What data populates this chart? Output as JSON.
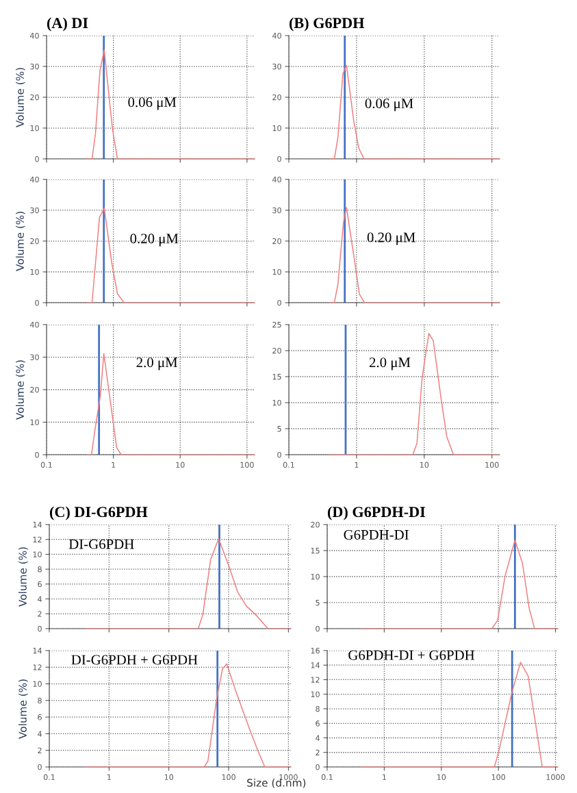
{
  "chart_data": [
    {
      "type": "line",
      "title": "(A) DI",
      "ylabel": "Volume (%)",
      "annotations": [
        "0.06 μM"
      ],
      "log": "x",
      "grid": true,
      "tick_labels": "y",
      "xlim": [
        0.1,
        130
      ],
      "ylim": [
        0,
        40
      ],
      "xticks": [
        0.1,
        1,
        10,
        100
      ],
      "yticks": [
        0,
        10,
        20,
        30,
        40
      ],
      "series": [
        {
          "color": "#f08080",
          "x": [
            0.4,
            0.48,
            0.54,
            0.63,
            0.73,
            0.97,
            1.15,
            130
          ],
          "values": [
            0,
            0,
            8.3,
            28.7,
            35.3,
            9.7,
            0,
            0
          ]
        }
      ],
      "ref_lines": [
        {
          "axis": "x",
          "value": 0.72,
          "color": "#4472c4"
        }
      ]
    },
    {
      "type": "line",
      "title": "(B) G6PDH",
      "annotations": [
        "0.06 μM"
      ],
      "log": "x",
      "grid": true,
      "tick_labels": "y",
      "xlim": [
        0.1,
        130
      ],
      "ylim": [
        0,
        40
      ],
      "xticks": [
        0.1,
        1,
        10,
        100
      ],
      "yticks": [
        0,
        10,
        20,
        30,
        40
      ],
      "series": [
        {
          "color": "#f08080",
          "x": [
            0.4,
            0.47,
            0.53,
            0.63,
            0.71,
            0.91,
            1.08,
            1.29,
            130
          ],
          "values": [
            0,
            0,
            6.8,
            27.7,
            30.4,
            12.2,
            3.4,
            0,
            0
          ]
        }
      ],
      "ref_lines": [
        {
          "axis": "x",
          "value": 0.67,
          "color": "#4472c4"
        }
      ]
    },
    {
      "type": "line",
      "ylabel": "Volume (%)",
      "annotations": [
        "0.20 μM"
      ],
      "log": "x",
      "grid": true,
      "tick_labels": "y",
      "xlim": [
        0.1,
        130
      ],
      "ylim": [
        0,
        40
      ],
      "xticks": [
        0.1,
        1,
        10,
        100
      ],
      "yticks": [
        0,
        10,
        20,
        30,
        40
      ],
      "series": [
        {
          "color": "#f08080",
          "x": [
            0.4,
            0.48,
            0.62,
            0.73,
            0.95,
            1.15,
            1.45,
            130
          ],
          "values": [
            0,
            0,
            27.7,
            30.7,
            12.7,
            2.9,
            0,
            0
          ]
        }
      ],
      "ref_lines": [
        {
          "axis": "x",
          "value": 0.72,
          "color": "#4472c4"
        }
      ]
    },
    {
      "type": "line",
      "annotations": [
        "0.20 μM"
      ],
      "log": "x",
      "grid": true,
      "tick_labels": "y",
      "xlim": [
        0.1,
        130
      ],
      "ylim": [
        0,
        40
      ],
      "xticks": [
        0.1,
        1,
        10,
        100
      ],
      "yticks": [
        0,
        10,
        20,
        30,
        40
      ],
      "series": [
        {
          "color": "#f08080",
          "x": [
            0.4,
            0.47,
            0.53,
            0.64,
            0.71,
            0.91,
            1.1,
            1.31,
            130
          ],
          "values": [
            0,
            0,
            5.9,
            26,
            30.9,
            15.3,
            2.8,
            0,
            0
          ]
        }
      ],
      "ref_lines": [
        {
          "axis": "x",
          "value": 0.67,
          "color": "#4472c4"
        }
      ]
    },
    {
      "type": "line",
      "ylabel": "Volume (%)",
      "annotations": [
        "2.0 μM"
      ],
      "log": "x",
      "grid": true,
      "xlim": [
        0.1,
        130
      ],
      "ylim": [
        0,
        40
      ],
      "xticks": [
        0.1,
        1,
        10,
        100
      ],
      "yticks": [
        0,
        10,
        20,
        30,
        40
      ],
      "series": [
        {
          "color": "#f08080",
          "x": [
            0.4,
            0.47,
            0.53,
            0.64,
            0.72,
            0.84,
            0.99,
            1.12,
            1.31,
            130
          ],
          "values": [
            0,
            0,
            7.6,
            18.3,
            31.1,
            21,
            10.3,
            2.2,
            0,
            0
          ]
        }
      ],
      "ref_lines": [
        {
          "axis": "x",
          "value": 0.61,
          "color": "#4472c4"
        }
      ]
    },
    {
      "type": "line",
      "annotations": [
        "2.0 μM"
      ],
      "log": "x",
      "grid": true,
      "xlim": [
        0.1,
        130
      ],
      "ylim": [
        0,
        25
      ],
      "xticks": [
        0.1,
        1,
        10,
        100
      ],
      "yticks": [
        0,
        5,
        10,
        15,
        20,
        25
      ],
      "series": [
        {
          "color": "#f08080",
          "x": [
            0.4,
            6.8,
            7.8,
            9.3,
            11.7,
            13.6,
            17.8,
            21.5,
            27,
            130
          ],
          "values": [
            0,
            0,
            2.2,
            14.8,
            23.3,
            21.9,
            10.6,
            3.5,
            0,
            0
          ]
        }
      ],
      "ref_lines": [
        {
          "axis": "x",
          "value": 0.69,
          "color": "#4472c4"
        }
      ]
    },
    {
      "type": "line",
      "title": "(C) DI-G6PDH",
      "ylabel": "Volume (%)",
      "annotations": [
        "DI-G6PDH"
      ],
      "log": "x",
      "grid": true,
      "tick_labels": "y",
      "xlim": [
        0.1,
        1100
      ],
      "ylim": [
        0,
        14
      ],
      "xticks": [
        0.1,
        1,
        10,
        100,
        1000
      ],
      "yticks": [
        0,
        2,
        4,
        6,
        8,
        10,
        12,
        14
      ],
      "series": [
        {
          "color": "#f08080",
          "x": [
            0.4,
            31,
            37,
            50,
            68,
            100,
            142,
            200,
            282,
            455,
            1100
          ],
          "values": [
            0,
            0,
            1.9,
            9.3,
            12.1,
            8.5,
            4.9,
            3.0,
            1.9,
            0,
            0
          ]
        }
      ],
      "ref_lines": [
        {
          "axis": "x",
          "value": 70,
          "color": "#4472c4"
        }
      ]
    },
    {
      "type": "line",
      "title": "(D) G6PDH-DI",
      "annotations": [
        "G6PDH-DI"
      ],
      "log": "x",
      "grid": true,
      "tick_labels": "y",
      "xlim": [
        0.1,
        1100
      ],
      "ylim": [
        0,
        20
      ],
      "xticks": [
        0.1,
        1,
        10,
        100,
        1000
      ],
      "yticks": [
        0,
        5,
        10,
        15,
        20
      ],
      "series": [
        {
          "color": "#f08080",
          "x": [
            0.4,
            77,
            97,
            131,
            195,
            265,
            345,
            430,
            1100
          ],
          "values": [
            0,
            0,
            1.6,
            10.1,
            17.0,
            12.5,
            4.0,
            0,
            0
          ]
        }
      ],
      "ref_lines": [
        {
          "axis": "x",
          "value": 195,
          "color": "#4472c4"
        }
      ]
    },
    {
      "type": "line",
      "ylabel": "Volume (%)",
      "xlabel": "Size (d.nm)",
      "annotations": [
        "DI-G6PDH + G6PDH"
      ],
      "log": "x",
      "grid": true,
      "xlim": [
        0.1,
        1100
      ],
      "ylim": [
        0,
        14
      ],
      "xticks": [
        0.1,
        1,
        10,
        100,
        1000
      ],
      "yticks": [
        0,
        2,
        4,
        6,
        8,
        10,
        12,
        14
      ],
      "series": [
        {
          "color": "#f08080",
          "x": [
            0.4,
            39,
            45,
            63,
            79,
            93,
            132,
            220,
            311,
            403,
            1100
          ],
          "values": [
            0,
            0,
            0.7,
            8.2,
            11.8,
            12.4,
            9.1,
            4.7,
            1.9,
            0,
            0
          ]
        }
      ],
      "ref_lines": [
        {
          "axis": "x",
          "value": 65,
          "color": "#4472c4"
        }
      ]
    },
    {
      "type": "line",
      "annotations": [
        "G6PDH-DI + G6PDH"
      ],
      "log": "x",
      "grid": true,
      "xlim": [
        0.1,
        1100
      ],
      "ylim": [
        0,
        16
      ],
      "xticks": [
        0.1,
        1,
        10,
        100,
        1000
      ],
      "yticks": [
        0,
        2,
        4,
        6,
        8,
        10,
        12,
        14,
        16
      ],
      "series": [
        {
          "color": "#f08080",
          "x": [
            0.4,
            85,
            102,
            172,
            244,
            332,
            451,
            586,
            1100
          ],
          "values": [
            0,
            0,
            2.2,
            10.2,
            14.4,
            12.5,
            5.8,
            0,
            0
          ]
        }
      ],
      "ref_lines": [
        {
          "axis": "x",
          "value": 174,
          "color": "#4472c4"
        }
      ]
    }
  ]
}
